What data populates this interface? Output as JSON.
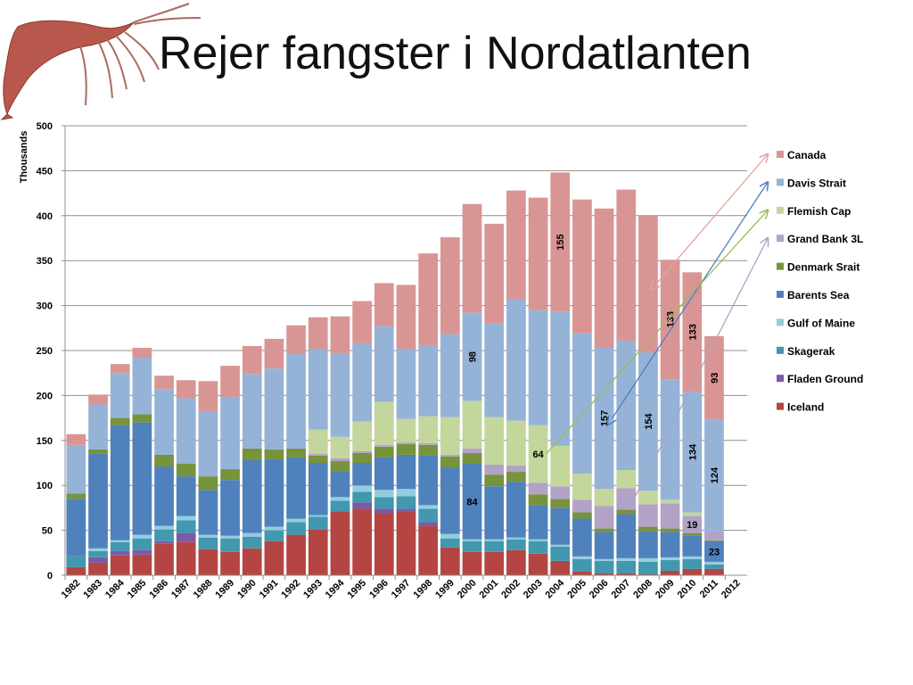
{
  "slide": {
    "title": "Rejer fangster i Nordatlanten"
  },
  "chart_data": {
    "type": "bar",
    "stacked": true,
    "title": "Rejer fangster i Nordatlanten",
    "ylabel": "Thousands",
    "xlabel": "",
    "ylim": [
      0,
      500
    ],
    "yticks": [
      0,
      50,
      100,
      150,
      200,
      250,
      300,
      350,
      400,
      450,
      500
    ],
    "legend_position": "right",
    "categories": [
      "1982",
      "1983",
      "1984",
      "1985",
      "1986",
      "1987",
      "1988",
      "1989",
      "1990",
      "1991",
      "1992",
      "1993",
      "1994",
      "1995",
      "1996",
      "1997",
      "1998",
      "1999",
      "2000",
      "2001",
      "2002",
      "2003",
      "2004",
      "2005",
      "2006",
      "2007",
      "2008",
      "2009",
      "2010",
      "2011",
      "2012"
    ],
    "series": [
      {
        "name": "Iceland",
        "color": "#b54542",
        "values": [
          9,
          14,
          22,
          23,
          35,
          37,
          29,
          26,
          30,
          38,
          45,
          51,
          71,
          74,
          69,
          71,
          55,
          31,
          26,
          26,
          28,
          24,
          16,
          4,
          2,
          2,
          1,
          5,
          7,
          7,
          0
        ]
      },
      {
        "name": "Fladen Ground",
        "color": "#7b5aa6",
        "values": [
          0,
          6,
          5,
          5,
          3,
          10,
          0,
          0,
          0,
          0,
          0,
          0,
          0,
          7,
          5,
          3,
          4,
          0,
          0,
          0,
          0,
          0,
          0,
          0,
          0,
          0,
          0,
          0,
          0,
          0,
          0
        ]
      },
      {
        "name": "Skagerak",
        "color": "#4198af",
        "values": [
          12,
          7,
          10,
          13,
          13,
          14,
          13,
          15,
          13,
          12,
          14,
          14,
          12,
          12,
          13,
          14,
          15,
          10,
          12,
          12,
          12,
          14,
          16,
          14,
          14,
          14,
          14,
          12,
          11,
          5,
          0
        ]
      },
      {
        "name": "Gulf of Maine",
        "color": "#93cddd",
        "values": [
          0,
          3,
          2,
          4,
          4,
          5,
          3,
          3,
          4,
          4,
          4,
          2,
          4,
          7,
          8,
          8,
          4,
          5,
          2,
          2,
          2,
          2,
          2,
          3,
          2,
          3,
          4,
          3,
          3,
          3,
          0
        ]
      },
      {
        "name": "Barents Sea",
        "color": "#4f81bd",
        "values": [
          64,
          105,
          128,
          125,
          66,
          44,
          50,
          62,
          81,
          75,
          68,
          58,
          29,
          25,
          36,
          38,
          55,
          74,
          84,
          59,
          62,
          38,
          41,
          42,
          30,
          49,
          30,
          28,
          23,
          23,
          0
        ]
      },
      {
        "name": "Denmark Srait",
        "color": "#77933c",
        "values": [
          6,
          5,
          8,
          9,
          13,
          14,
          15,
          12,
          13,
          11,
          10,
          8,
          11,
          11,
          12,
          12,
          12,
          12,
          12,
          13,
          11,
          12,
          10,
          7,
          4,
          5,
          5,
          4,
          3,
          1,
          0
        ]
      },
      {
        "name": "Grand Bank 3L",
        "color": "#b3a2c7",
        "values": [
          0,
          0,
          0,
          0,
          0,
          0,
          0,
          0,
          0,
          0,
          0,
          2,
          3,
          2,
          2,
          2,
          2,
          2,
          5,
          11,
          7,
          13,
          14,
          14,
          25,
          24,
          25,
          28,
          19,
          10,
          0
        ]
      },
      {
        "name": "Flemish Cap",
        "color": "#c3d69b",
        "values": [
          0,
          0,
          0,
          0,
          0,
          0,
          0,
          0,
          0,
          0,
          0,
          27,
          24,
          33,
          48,
          26,
          30,
          42,
          53,
          53,
          50,
          64,
          45,
          29,
          19,
          20,
          15,
          4,
          4,
          0,
          0
        ]
      },
      {
        "name": "Davis Strait",
        "color": "#95b3d7",
        "values": [
          54,
          50,
          50,
          63,
          73,
          73,
          72,
          80,
          83,
          90,
          105,
          90,
          93,
          87,
          84,
          78,
          79,
          92,
          98,
          104,
          135,
          128,
          149,
          156,
          157,
          144,
          154,
          134,
          134,
          124,
          0
        ]
      },
      {
        "name": "Canada",
        "color": "#d99594",
        "values": [
          12,
          11,
          10,
          11,
          15,
          20,
          34,
          35,
          31,
          33,
          32,
          35,
          41,
          47,
          48,
          71,
          102,
          108,
          121,
          111,
          121,
          125,
          155,
          149,
          155,
          168,
          152,
          133,
          133,
          93,
          0
        ]
      }
    ],
    "data_labels": [
      {
        "series": "Canada",
        "category": "2004",
        "text": "155",
        "rotate": true
      },
      {
        "series": "Canada",
        "category": "2009",
        "text": "133",
        "rotate": true
      },
      {
        "series": "Canada",
        "category": "2010",
        "text": "133",
        "rotate": true
      },
      {
        "series": "Canada",
        "category": "2011",
        "text": "93",
        "rotate": true
      },
      {
        "series": "Davis Strait",
        "category": "2000",
        "text": "98",
        "rotate": true
      },
      {
        "series": "Davis Strait",
        "category": "2006",
        "text": "157",
        "rotate": true
      },
      {
        "series": "Davis Strait",
        "category": "2008",
        "text": "154",
        "rotate": true
      },
      {
        "series": "Davis Strait",
        "category": "2010",
        "text": "134",
        "rotate": true
      },
      {
        "series": "Davis Strait",
        "category": "2011",
        "text": "124",
        "rotate": true
      },
      {
        "series": "Flemish Cap",
        "category": "2003",
        "text": "64",
        "rotate": false
      },
      {
        "series": "Barents Sea",
        "category": "2000",
        "text": "84",
        "rotate": false
      },
      {
        "series": "Grand Bank 3L",
        "category": "2010",
        "text": "19",
        "rotate": false
      },
      {
        "series": "Barents Sea",
        "category": "2011",
        "text": "23",
        "rotate": false
      }
    ],
    "annotation_arrows": [
      {
        "series": "Canada",
        "color": "#e6a19f",
        "from_category": "2008",
        "to_legend": "Canada"
      },
      {
        "series": "Davis Strait",
        "color": "#4f81bd",
        "from_category": "2006",
        "to_legend": "Davis Strait"
      },
      {
        "series": "Flemish Cap",
        "color": "#9bbb59",
        "from_category": "2003",
        "to_legend": "Flemish Cap"
      },
      {
        "series": "Grand Bank 3L",
        "color": "#b3a2c7",
        "from_category": "2007",
        "to_legend": "Grand Bank 3L"
      }
    ]
  }
}
